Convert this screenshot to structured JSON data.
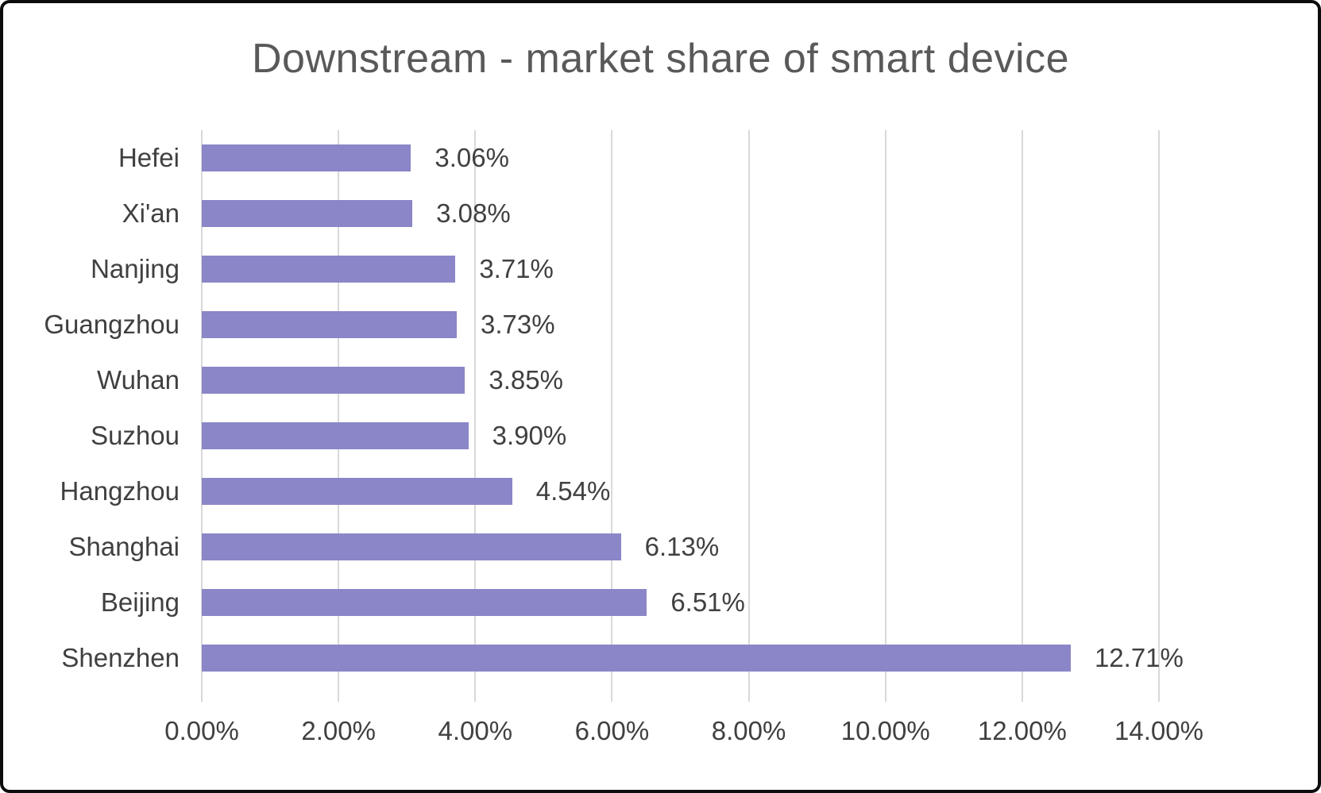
{
  "chart_data": {
    "type": "bar",
    "orientation": "horizontal",
    "title": "Downstream - market share of smart device",
    "categories": [
      "Hefei",
      "Xi'an",
      "Nanjing",
      "Guangzhou",
      "Wuhan",
      "Suzhou",
      "Hangzhou",
      "Shanghai",
      "Beijing",
      "Shenzhen"
    ],
    "values": [
      3.06,
      3.08,
      3.71,
      3.73,
      3.85,
      3.9,
      4.54,
      6.13,
      6.51,
      12.71
    ],
    "data_labels": [
      "3.06%",
      "3.08%",
      "3.71%",
      "3.73%",
      "3.85%",
      "3.90%",
      "4.54%",
      "6.13%",
      "6.51%",
      "12.71%"
    ],
    "x_ticks": [
      "0.00%",
      "2.00%",
      "4.00%",
      "6.00%",
      "8.00%",
      "10.00%",
      "12.00%",
      "14.00%"
    ],
    "xlim": [
      0,
      14
    ],
    "grid": "vertical",
    "legend": "none",
    "colors": {
      "bar": "#8a86c7",
      "gridline": "#d9d9d9",
      "text": "#404040",
      "title": "#595959",
      "background": "#ffffff",
      "frame_border": "#0c0c0c"
    }
  }
}
